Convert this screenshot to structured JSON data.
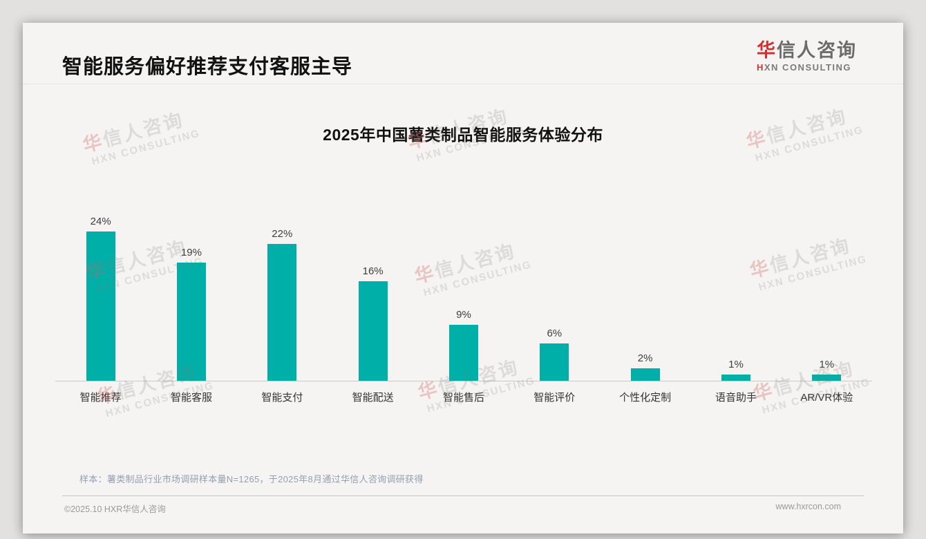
{
  "header": {
    "title": "智能服务偏好推荐支付客服主导",
    "logo": {
      "cn_first": "华",
      "cn_rest": "信人咨询",
      "en_first": "H",
      "en_rest": "XN CONSULTING"
    }
  },
  "chart_data": {
    "type": "bar",
    "title": "2025年中国薯类制品智能服务体验分布",
    "categories": [
      "智能推荐",
      "智能客服",
      "智能支付",
      "智能配送",
      "智能售后",
      "智能评价",
      "个性化定制",
      "语音助手",
      "AR/VR体验"
    ],
    "values": [
      24,
      19,
      22,
      16,
      9,
      6,
      2,
      1,
      1
    ],
    "unit": "%",
    "value_labels": [
      "24%",
      "19%",
      "22%",
      "16%",
      "9%",
      "6%",
      "2%",
      "1%",
      "1%"
    ],
    "bar_color": "#00b0a8",
    "ylim": [
      0,
      26
    ],
    "xlabel": "",
    "ylabel": "",
    "grid": false,
    "legend": "none"
  },
  "watermark": {
    "line1_first": "华",
    "line1_rest": "信人咨询",
    "line2": "HXN CONSULTING"
  },
  "note": "样本：薯类制品行业市场调研样本量N=1265，于2025年8月通过华信人咨询调研获得",
  "footer": {
    "copyright": "©2025.10 HXR华信人咨询",
    "website": "www.hxrcon.com"
  }
}
